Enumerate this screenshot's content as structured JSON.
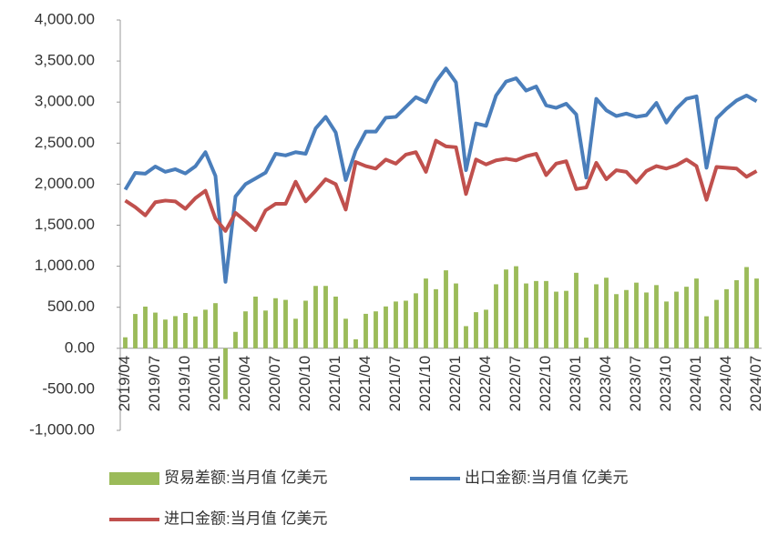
{
  "chart_data": {
    "type": "bar-line",
    "categories": [
      "2019/04",
      null,
      null,
      "2019/07",
      null,
      null,
      "2019/10",
      null,
      null,
      "2020/01",
      null,
      null,
      "2020/04",
      null,
      null,
      "2020/07",
      null,
      null,
      "2020/10",
      null,
      null,
      "2021/01",
      null,
      null,
      "2021/04",
      null,
      null,
      "2021/07",
      null,
      null,
      "2021/10",
      null,
      null,
      "2022/01",
      null,
      null,
      "2022/04",
      null,
      null,
      "2022/07",
      null,
      null,
      "2022/10",
      null,
      null,
      "2023/01",
      null,
      null,
      "2023/04",
      null,
      null,
      "2023/07",
      null,
      null,
      "2023/10",
      null,
      null,
      "2024/01",
      null,
      null,
      "2024/04",
      null,
      null,
      "2024/07"
    ],
    "series": [
      {
        "name": "贸易差额:当月值 亿美元",
        "type": "bar",
        "color": "#9bbb59",
        "values": [
          134,
          418,
          508,
          435,
          350,
          392,
          430,
          388,
          470,
          550,
          -620,
          200,
          450,
          630,
          460,
          610,
          590,
          360,
          580,
          760,
          760,
          630,
          360,
          110,
          420,
          450,
          510,
          570,
          580,
          670,
          850,
          720,
          950,
          790,
          270,
          440,
          470,
          780,
          960,
          1000,
          790,
          820,
          820,
          690,
          700,
          920,
          130,
          780,
          860,
          660,
          710,
          800,
          680,
          770,
          570,
          690,
          750,
          850,
          390,
          590,
          720,
          830,
          990,
          850
        ]
      },
      {
        "name": "出口金额:当月值 亿美元",
        "type": "line",
        "color": "#4a7ebb",
        "values": [
          1934,
          2138,
          2128,
          2215,
          2150,
          2182,
          2130,
          2218,
          2390,
          2100,
          810,
          1850,
          2000,
          2070,
          2140,
          2370,
          2350,
          2390,
          2370,
          2680,
          2820,
          2630,
          2050,
          2410,
          2640,
          2640,
          2810,
          2820,
          2940,
          3060,
          3000,
          3250,
          3410,
          3240,
          2170,
          2740,
          2710,
          3080,
          3250,
          3290,
          3140,
          3190,
          2960,
          2930,
          2980,
          2850,
          2080,
          3040,
          2900,
          2830,
          2860,
          2820,
          2840,
          2990,
          2750,
          2920,
          3040,
          3070,
          2200,
          2800,
          2920,
          3020,
          3080,
          3010
        ]
      },
      {
        "name": "进口金额:当月值 亿美元",
        "type": "line",
        "color": "#c0504d",
        "values": [
          1800,
          1720,
          1620,
          1780,
          1800,
          1790,
          1700,
          1830,
          1920,
          1580,
          1430,
          1650,
          1550,
          1440,
          1680,
          1760,
          1760,
          2030,
          1790,
          1920,
          2060,
          2000,
          1690,
          2270,
          2220,
          2190,
          2300,
          2250,
          2360,
          2390,
          2150,
          2530,
          2460,
          2450,
          1880,
          2300,
          2240,
          2290,
          2310,
          2290,
          2340,
          2370,
          2110,
          2250,
          2280,
          1940,
          1960,
          2260,
          2060,
          2170,
          2150,
          2020,
          2160,
          2220,
          2190,
          2230,
          2300,
          2220,
          1810,
          2210,
          2200,
          2190,
          2090,
          2160
        ]
      }
    ],
    "ylim": [
      -1000,
      4000
    ],
    "yticks": [
      {
        "value": -1000,
        "label": "-1,000.00"
      },
      {
        "value": -500,
        "label": "-500.00"
      },
      {
        "value": 0,
        "label": "0.00"
      },
      {
        "value": 500,
        "label": "500.00"
      },
      {
        "value": 1000,
        "label": "1,000.00"
      },
      {
        "value": 1500,
        "label": "1,500.00"
      },
      {
        "value": 2000,
        "label": "2,000.00"
      },
      {
        "value": 2500,
        "label": "2,500.00"
      },
      {
        "value": 3000,
        "label": "3,000.00"
      },
      {
        "value": 3500,
        "label": "3,500.00"
      },
      {
        "value": 4000,
        "label": "4,000.00"
      }
    ],
    "grid": false
  }
}
